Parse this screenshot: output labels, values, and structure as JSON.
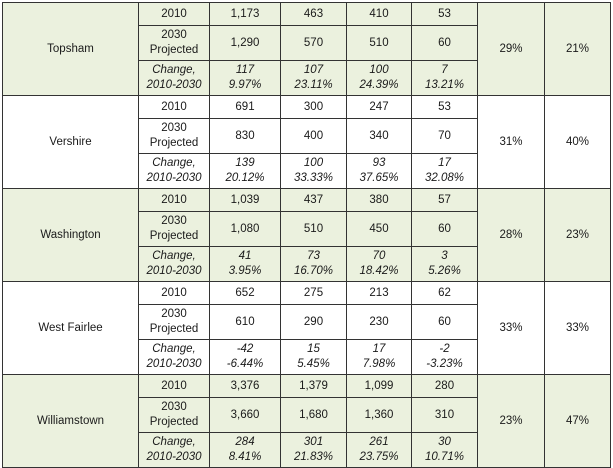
{
  "colors": {
    "shaded_row": "#ebf1de",
    "plain_row": "#ffffff",
    "border": "#333333"
  },
  "towns": [
    {
      "name": "Topsham",
      "shaded": true,
      "pct_a": "29%",
      "pct_b": "21%",
      "rows": [
        {
          "label_lines": [
            "2010"
          ],
          "values": [
            [
              "1,173"
            ],
            [
              "463"
            ],
            [
              "410"
            ],
            [
              "53"
            ]
          ],
          "italic": false
        },
        {
          "label_lines": [
            "2030",
            "Projected"
          ],
          "values": [
            [
              "1,290"
            ],
            [
              "570"
            ],
            [
              "510"
            ],
            [
              "60"
            ]
          ],
          "italic": false
        },
        {
          "label_lines": [
            "Change,",
            "2010-2030"
          ],
          "values": [
            [
              "117",
              "9.97%"
            ],
            [
              "107",
              "23.11%"
            ],
            [
              "100",
              "24.39%"
            ],
            [
              "7",
              "13.21%"
            ]
          ],
          "italic": true
        }
      ]
    },
    {
      "name": "Vershire",
      "shaded": false,
      "pct_a": "31%",
      "pct_b": "40%",
      "rows": [
        {
          "label_lines": [
            "2010"
          ],
          "values": [
            [
              "691"
            ],
            [
              "300"
            ],
            [
              "247"
            ],
            [
              "53"
            ]
          ],
          "italic": false
        },
        {
          "label_lines": [
            "2030",
            "Projected"
          ],
          "values": [
            [
              "830"
            ],
            [
              "400"
            ],
            [
              "340"
            ],
            [
              "70"
            ]
          ],
          "italic": false
        },
        {
          "label_lines": [
            "Change,",
            "2010-2030"
          ],
          "values": [
            [
              "139",
              "20.12%"
            ],
            [
              "100",
              "33.33%"
            ],
            [
              "93",
              "37.65%"
            ],
            [
              "17",
              "32.08%"
            ]
          ],
          "italic": true
        }
      ]
    },
    {
      "name": "Washington",
      "shaded": true,
      "pct_a": "28%",
      "pct_b": "23%",
      "rows": [
        {
          "label_lines": [
            "2010"
          ],
          "values": [
            [
              "1,039"
            ],
            [
              "437"
            ],
            [
              "380"
            ],
            [
              "57"
            ]
          ],
          "italic": false
        },
        {
          "label_lines": [
            "2030",
            "Projected"
          ],
          "values": [
            [
              "1,080"
            ],
            [
              "510"
            ],
            [
              "450"
            ],
            [
              "60"
            ]
          ],
          "italic": false
        },
        {
          "label_lines": [
            "Change,",
            "2010-2030"
          ],
          "values": [
            [
              "41",
              "3.95%"
            ],
            [
              "73",
              "16.70%"
            ],
            [
              "70",
              "18.42%"
            ],
            [
              "3",
              "5.26%"
            ]
          ],
          "italic": true
        }
      ]
    },
    {
      "name": "West Fairlee",
      "shaded": false,
      "pct_a": "33%",
      "pct_b": "33%",
      "rows": [
        {
          "label_lines": [
            "2010"
          ],
          "values": [
            [
              "652"
            ],
            [
              "275"
            ],
            [
              "213"
            ],
            [
              "62"
            ]
          ],
          "italic": false
        },
        {
          "label_lines": [
            "2030",
            "Projected"
          ],
          "values": [
            [
              "610"
            ],
            [
              "290"
            ],
            [
              "230"
            ],
            [
              "60"
            ]
          ],
          "italic": false
        },
        {
          "label_lines": [
            "Change,",
            "2010-2030"
          ],
          "values": [
            [
              "-42",
              "-6.44%"
            ],
            [
              "15",
              "5.45%"
            ],
            [
              "17",
              "7.98%"
            ],
            [
              "-2",
              "-3.23%"
            ]
          ],
          "italic": true
        }
      ]
    },
    {
      "name": "Williamstown",
      "shaded": true,
      "pct_a": "23%",
      "pct_b": "47%",
      "rows": [
        {
          "label_lines": [
            "2010"
          ],
          "values": [
            [
              "3,376"
            ],
            [
              "1,379"
            ],
            [
              "1,099"
            ],
            [
              "280"
            ]
          ],
          "italic": false
        },
        {
          "label_lines": [
            "2030",
            "Projected"
          ],
          "values": [
            [
              "3,660"
            ],
            [
              "1,680"
            ],
            [
              "1,360"
            ],
            [
              "310"
            ]
          ],
          "italic": false
        },
        {
          "label_lines": [
            "Change,",
            "2010-2030"
          ],
          "values": [
            [
              "284",
              "8.41%"
            ],
            [
              "301",
              "21.83%"
            ],
            [
              "261",
              "23.75%"
            ],
            [
              "30",
              "10.71%"
            ]
          ],
          "italic": true
        }
      ]
    }
  ]
}
